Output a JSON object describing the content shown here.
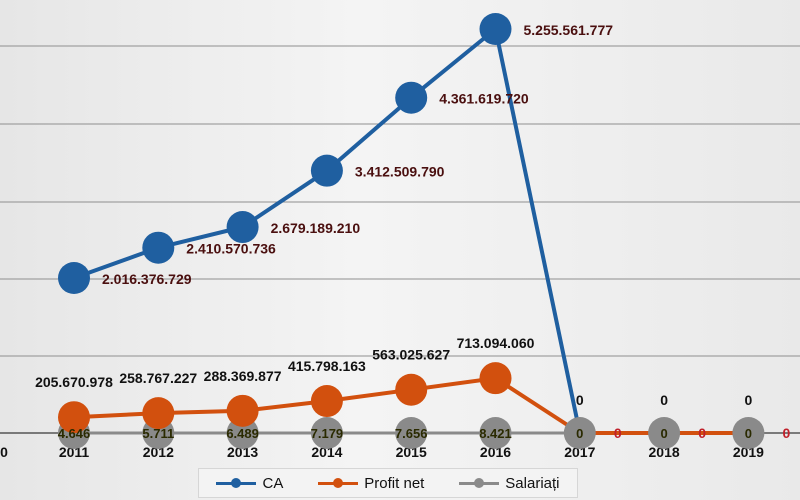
{
  "chart_data": {
    "type": "line",
    "categories": [
      "2011",
      "2012",
      "2013",
      "2014",
      "2015",
      "2016",
      "2017",
      "2018",
      "2019"
    ],
    "y_tick_labels": [
      "0"
    ],
    "series": [
      {
        "name": "CA",
        "color": "#1f5fa0",
        "values": [
          2016376729,
          2410570736,
          2679189210,
          3412509790,
          4361619720,
          5255561777,
          0,
          null,
          null
        ],
        "labels": [
          "2.016.376.729",
          "2.410.570.736",
          "2.679.189.210",
          "3.412.509.790",
          "4.361.619.720",
          "5.255.561.777",
          "0",
          "",
          ""
        ]
      },
      {
        "name": "Profit net",
        "color": "#d2500e",
        "values": [
          205670978,
          258767227,
          288369877,
          415798163,
          563025627,
          713094060,
          0,
          0,
          0
        ],
        "labels": [
          "205.670.978",
          "258.767.227",
          "288.369.877",
          "415.798.163",
          "563.025.627",
          "713.094.060",
          "0",
          "0",
          "0"
        ]
      },
      {
        "name": "Salariați",
        "color": "#8a8a8a",
        "values": [
          4646,
          5711,
          6489,
          7179,
          7656,
          8421,
          0,
          0,
          0
        ],
        "labels": [
          "4.646",
          "5.711",
          "6.489",
          "7.179",
          "7.656",
          "8.421",
          "0",
          "0",
          "0"
        ]
      }
    ],
    "ylim": [
      0,
      6000000000
    ],
    "grid": true,
    "legend_position": "bottom"
  }
}
